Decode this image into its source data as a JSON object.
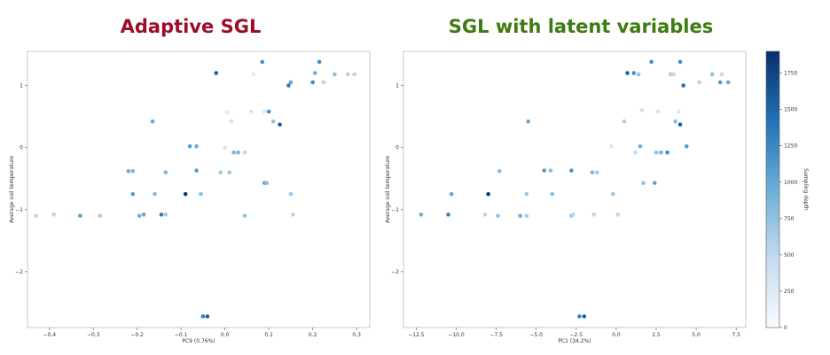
{
  "chart_data": [
    {
      "type": "scatter",
      "title": "Adaptive SGL",
      "title_color": "#9b0d2a",
      "xlabel": "PC9 (0.76%)",
      "ylabel": "Average soil temperature",
      "xlim": [
        -0.45,
        0.33
      ],
      "ylim": [
        -2.9,
        1.55
      ],
      "xticks": [
        -0.4,
        -0.3,
        -0.2,
        -0.1,
        0.0,
        0.1,
        0.2,
        0.3
      ],
      "xtick_labels": [
        "−0.4",
        "−0.3",
        "−0.2",
        "−0.1",
        "0.0",
        "0.1",
        "0.2",
        "0.3"
      ],
      "yticks": [
        1,
        0,
        -1,
        -2
      ],
      "ytick_labels": [
        "1",
        "0",
        "−1",
        "−2"
      ],
      "color_by": "Sampling depth",
      "points": [
        {
          "x": -0.43,
          "y": -1.1,
          "depth": 550
        },
        {
          "x": -0.39,
          "y": -1.08,
          "depth": 550
        },
        {
          "x": -0.33,
          "y": -1.1,
          "depth": 1050
        },
        {
          "x": -0.285,
          "y": -1.1,
          "depth": 650
        },
        {
          "x": -0.22,
          "y": -0.38,
          "depth": 950
        },
        {
          "x": -0.21,
          "y": -0.38,
          "depth": 850
        },
        {
          "x": -0.21,
          "y": -0.75,
          "depth": 1100
        },
        {
          "x": -0.195,
          "y": -1.1,
          "depth": 950
        },
        {
          "x": -0.185,
          "y": -1.08,
          "depth": 1000
        },
        {
          "x": -0.165,
          "y": 0.42,
          "depth": 1000
        },
        {
          "x": -0.16,
          "y": -0.75,
          "depth": 800
        },
        {
          "x": -0.145,
          "y": -1.08,
          "depth": 1350
        },
        {
          "x": -0.135,
          "y": -1.08,
          "depth": 650
        },
        {
          "x": -0.135,
          "y": -0.4,
          "depth": 850
        },
        {
          "x": -0.09,
          "y": -0.75,
          "depth": 1850
        },
        {
          "x": -0.08,
          "y": 0.02,
          "depth": 1100
        },
        {
          "x": -0.065,
          "y": -0.37,
          "depth": 1100
        },
        {
          "x": -0.065,
          "y": 0.02,
          "depth": 950
        },
        {
          "x": -0.055,
          "y": -0.75,
          "depth": 800
        },
        {
          "x": -0.05,
          "y": -2.72,
          "depth": 1300
        },
        {
          "x": -0.04,
          "y": -2.72,
          "depth": 1550
        },
        {
          "x": -0.02,
          "y": 1.2,
          "depth": 1550
        },
        {
          "x": -0.01,
          "y": -0.4,
          "depth": 700
        },
        {
          "x": 0.0,
          "y": 0.0,
          "depth": 300
        },
        {
          "x": 0.005,
          "y": 0.57,
          "depth": 250
        },
        {
          "x": 0.01,
          "y": -0.4,
          "depth": 700
        },
        {
          "x": 0.015,
          "y": 0.42,
          "depth": 400
        },
        {
          "x": 0.02,
          "y": -0.08,
          "depth": 850
        },
        {
          "x": 0.03,
          "y": -0.08,
          "depth": 900
        },
        {
          "x": 0.045,
          "y": -0.08,
          "depth": 500
        },
        {
          "x": 0.045,
          "y": -1.1,
          "depth": 750
        },
        {
          "x": 0.06,
          "y": 0.58,
          "depth": 350
        },
        {
          "x": 0.065,
          "y": 1.18,
          "depth": 250
        },
        {
          "x": 0.085,
          "y": 1.38,
          "depth": 1200
        },
        {
          "x": 0.09,
          "y": 0.58,
          "depth": 300
        },
        {
          "x": 0.09,
          "y": -0.57,
          "depth": 1050
        },
        {
          "x": 0.095,
          "y": -0.57,
          "depth": 800
        },
        {
          "x": 0.1,
          "y": 0.58,
          "depth": 1200
        },
        {
          "x": 0.11,
          "y": 0.42,
          "depth": 750
        },
        {
          "x": 0.125,
          "y": 0.37,
          "depth": 1550
        },
        {
          "x": 0.145,
          "y": 1.0,
          "depth": 1350
        },
        {
          "x": 0.15,
          "y": 1.05,
          "depth": 1000
        },
        {
          "x": 0.15,
          "y": -0.75,
          "depth": 700
        },
        {
          "x": 0.155,
          "y": -1.08,
          "depth": 550
        },
        {
          "x": 0.2,
          "y": 1.05,
          "depth": 1200
        },
        {
          "x": 0.205,
          "y": 1.2,
          "depth": 950
        },
        {
          "x": 0.215,
          "y": 1.38,
          "depth": 1200
        },
        {
          "x": 0.225,
          "y": 1.05,
          "depth": 550
        },
        {
          "x": 0.25,
          "y": 1.18,
          "depth": 750
        },
        {
          "x": 0.28,
          "y": 1.18,
          "depth": 550
        },
        {
          "x": 0.295,
          "y": 1.18,
          "depth": 550
        }
      ]
    },
    {
      "type": "scatter",
      "title": "SGL with latent variables",
      "title_color": "#3e7b10",
      "xlabel": "PC1 (34.2%)",
      "ylabel": "Average soil temperature",
      "xlim": [
        -13.3,
        8.1
      ],
      "ylim": [
        -2.9,
        1.55
      ],
      "xticks": [
        -12.5,
        -10.0,
        -7.5,
        -5.0,
        -2.5,
        0.0,
        2.5,
        5.0,
        7.5
      ],
      "xtick_labels": [
        "−12.5",
        "−10.0",
        "−7.5",
        "−5.0",
        "−2.5",
        "0.0",
        "2.5",
        "5.0",
        "7.5"
      ],
      "yticks": [
        1,
        0,
        -1,
        -2
      ],
      "ytick_labels": [
        "1",
        "0",
        "−1",
        "−2"
      ],
      "color_by": "Sampling depth",
      "points": [
        {
          "x": -12.2,
          "y": -1.08,
          "depth": 950
        },
        {
          "x": -10.5,
          "y": -1.08,
          "depth": 1300
        },
        {
          "x": -10.3,
          "y": -0.75,
          "depth": 1000
        },
        {
          "x": -8.2,
          "y": -1.08,
          "depth": 550
        },
        {
          "x": -8.0,
          "y": -0.75,
          "depth": 1850
        },
        {
          "x": -7.4,
          "y": -1.1,
          "depth": 750
        },
        {
          "x": -7.3,
          "y": -0.38,
          "depth": 800
        },
        {
          "x": -6.0,
          "y": -1.1,
          "depth": 950
        },
        {
          "x": -5.6,
          "y": -0.75,
          "depth": 700
        },
        {
          "x": -5.6,
          "y": -1.1,
          "depth": 650
        },
        {
          "x": -5.5,
          "y": 0.42,
          "depth": 1000
        },
        {
          "x": -4.5,
          "y": -0.37,
          "depth": 1100
        },
        {
          "x": -4.1,
          "y": -0.37,
          "depth": 800
        },
        {
          "x": -4.0,
          "y": -0.75,
          "depth": 800
        },
        {
          "x": -2.8,
          "y": -1.1,
          "depth": 650
        },
        {
          "x": -2.8,
          "y": -0.37,
          "depth": 1150
        },
        {
          "x": -2.7,
          "y": -1.08,
          "depth": 550
        },
        {
          "x": -2.3,
          "y": -2.72,
          "depth": 1300
        },
        {
          "x": -2.0,
          "y": -2.72,
          "depth": 1550
        },
        {
          "x": -1.5,
          "y": -0.4,
          "depth": 850
        },
        {
          "x": -1.4,
          "y": -1.08,
          "depth": 550
        },
        {
          "x": -1.2,
          "y": -0.4,
          "depth": 650
        },
        {
          "x": -0.3,
          "y": 0.02,
          "depth": 300
        },
        {
          "x": -0.2,
          "y": -0.75,
          "depth": 700
        },
        {
          "x": 0.1,
          "y": -1.08,
          "depth": 550
        },
        {
          "x": 0.5,
          "y": 0.42,
          "depth": 600
        },
        {
          "x": 0.7,
          "y": 1.2,
          "depth": 1550
        },
        {
          "x": 1.1,
          "y": 1.2,
          "depth": 1200
        },
        {
          "x": 1.2,
          "y": -0.08,
          "depth": 500
        },
        {
          "x": 1.4,
          "y": 1.18,
          "depth": 750
        },
        {
          "x": 1.5,
          "y": 0.02,
          "depth": 950
        },
        {
          "x": 1.6,
          "y": 0.6,
          "depth": 400
        },
        {
          "x": 1.7,
          "y": -0.57,
          "depth": 750
        },
        {
          "x": 2.2,
          "y": 1.38,
          "depth": 1200
        },
        {
          "x": 2.4,
          "y": -0.57,
          "depth": 1050
        },
        {
          "x": 2.5,
          "y": -0.08,
          "depth": 750
        },
        {
          "x": 2.6,
          "y": 0.58,
          "depth": 350
        },
        {
          "x": 2.8,
          "y": -0.08,
          "depth": 900
        },
        {
          "x": 3.2,
          "y": -0.08,
          "depth": 1200
        },
        {
          "x": 3.4,
          "y": 1.18,
          "depth": 600
        },
        {
          "x": 3.6,
          "y": 1.18,
          "depth": 500
        },
        {
          "x": 3.7,
          "y": 0.42,
          "depth": 800
        },
        {
          "x": 3.9,
          "y": 0.58,
          "depth": 300
        },
        {
          "x": 4.0,
          "y": 1.38,
          "depth": 1200
        },
        {
          "x": 4.0,
          "y": 0.37,
          "depth": 1550
        },
        {
          "x": 4.2,
          "y": 1.0,
          "depth": 1400
        },
        {
          "x": 4.4,
          "y": 0.02,
          "depth": 1100
        },
        {
          "x": 5.2,
          "y": 1.05,
          "depth": 550
        },
        {
          "x": 6.0,
          "y": 1.18,
          "depth": 750
        },
        {
          "x": 6.5,
          "y": 1.05,
          "depth": 1100
        },
        {
          "x": 6.6,
          "y": 1.18,
          "depth": 500
        },
        {
          "x": 7.0,
          "y": 1.05,
          "depth": 1000
        }
      ]
    }
  ],
  "colorbar": {
    "label": "Sampling depth",
    "min": 0,
    "max": 1900,
    "ticks": [
      0,
      250,
      500,
      750,
      1000,
      1250,
      1500,
      1750
    ],
    "colormap_stops": [
      "#f7fbff",
      "#c6dbef",
      "#6baed6",
      "#2171b5",
      "#08306b"
    ]
  }
}
